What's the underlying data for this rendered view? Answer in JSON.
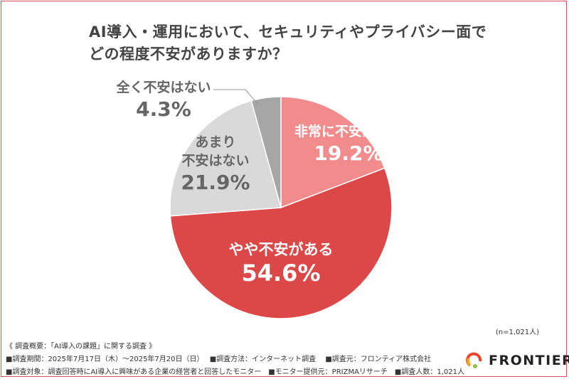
{
  "title_lines": [
    "AI導入・運用において、セキュリティやプライバシー面で",
    "どの程度不安がありますか？"
  ],
  "chart_data": {
    "type": "pie",
    "title": "AI導入・運用において、セキュリティやプライバシー面でどの程度不安がありますか？",
    "start": "top",
    "direction": "clockwise",
    "slices": [
      {
        "label": "非常に不安がある",
        "value": 19.2,
        "value_label": "19.2%",
        "color": "#f28b8b"
      },
      {
        "label": "やや不安がある",
        "value": 54.6,
        "value_label": "54.6%",
        "color": "#dc4848"
      },
      {
        "label": "あまり不安はない",
        "label_lines": [
          "あまり",
          "不安はない"
        ],
        "value": 21.9,
        "value_label": "21.9%",
        "color": "#d9d9d9"
      },
      {
        "label": "全く不安はない",
        "value": 4.3,
        "value_label": "4.3%",
        "color": "#a6a6a6"
      }
    ],
    "sample_size": "(n=1,021人)"
  },
  "footer": {
    "line0": "《 調査概要：「AI導入の課題」に関する調査 》",
    "line1": "■調査期間：2025年7月17日（木）～2025年7月20日（日）　 ■調査方法：インターネット調査　 ■調査元：フロンティア株式会社",
    "line2": "■調査対象：調査回答時にAI導入に興味がある企業の経営者と回答したモニター　■モニター提供元：PRIZMAリサーチ　■調査人数：1,021人"
  },
  "logo": {
    "text": "FRONTIER"
  },
  "colors": {
    "frame": "#e05050",
    "label_light": "#ffffff",
    "label_dark": "#666666"
  }
}
